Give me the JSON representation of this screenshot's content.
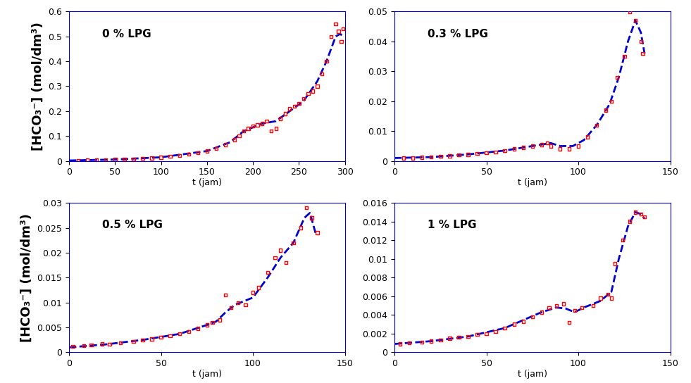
{
  "chart_data": [
    {
      "type": "line",
      "annotations": [
        "0 % LPG"
      ],
      "x_label": "t (jam)",
      "y_label": "[HCO₃⁻] (mol/dm³)",
      "xlim": [
        0,
        300
      ],
      "xticks": [
        0,
        50,
        100,
        150,
        200,
        250,
        300
      ],
      "ylim": [
        0,
        0.6
      ],
      "yticks": [
        0,
        0.1,
        0.2,
        0.3,
        0.4,
        0.5,
        0.6
      ],
      "series": [
        {
          "type": "scatter",
          "color": "#ff0000",
          "marker": "square",
          "x": [
            10,
            20,
            30,
            40,
            50,
            60,
            70,
            80,
            90,
            100,
            110,
            120,
            130,
            140,
            150,
            160,
            170,
            180,
            185,
            190,
            195,
            200,
            205,
            210,
            215,
            220,
            225,
            230,
            235,
            240,
            245,
            250,
            255,
            260,
            265,
            270,
            275,
            280,
            285,
            290,
            293,
            296,
            298
          ],
          "values": [
            0.002,
            0.003,
            0.004,
            0.005,
            0.006,
            0.007,
            0.008,
            0.01,
            0.012,
            0.015,
            0.018,
            0.022,
            0.027,
            0.033,
            0.04,
            0.05,
            0.065,
            0.085,
            0.1,
            0.12,
            0.13,
            0.14,
            0.145,
            0.15,
            0.16,
            0.12,
            0.13,
            0.17,
            0.19,
            0.21,
            0.22,
            0.23,
            0.25,
            0.27,
            0.28,
            0.3,
            0.35,
            0.4,
            0.5,
            0.55,
            0.52,
            0.48,
            0.53
          ]
        },
        {
          "type": "line",
          "color": "#0000cc",
          "line_style": "dashed",
          "x": [
            0,
            50,
            100,
            150,
            175,
            190,
            210,
            225,
            240,
            255,
            270,
            280,
            290,
            295,
            298
          ],
          "values": [
            0.002,
            0.006,
            0.015,
            0.04,
            0.075,
            0.12,
            0.15,
            0.16,
            0.2,
            0.24,
            0.32,
            0.4,
            0.5,
            0.51,
            0.5
          ]
        }
      ]
    },
    {
      "type": "line",
      "annotations": [
        "0.3 % LPG"
      ],
      "x_label": "t (jam)",
      "xlim": [
        0,
        150
      ],
      "xticks": [
        0,
        50,
        100,
        150
      ],
      "ylim": [
        0,
        0.05
      ],
      "yticks": [
        0,
        0.01,
        0.02,
        0.03,
        0.04,
        0.05
      ],
      "series": [
        {
          "type": "scatter",
          "color": "#ff0000",
          "marker": "square",
          "x": [
            5,
            10,
            15,
            20,
            25,
            30,
            35,
            40,
            45,
            50,
            55,
            60,
            65,
            70,
            75,
            80,
            83,
            85,
            90,
            95,
            100,
            105,
            110,
            115,
            118,
            121,
            125,
            128,
            131,
            134,
            135
          ],
          "values": [
            0.001,
            0.001,
            0.0012,
            0.0013,
            0.0015,
            0.0017,
            0.002,
            0.0022,
            0.0025,
            0.0028,
            0.003,
            0.0035,
            0.004,
            0.0045,
            0.005,
            0.0055,
            0.006,
            0.005,
            0.004,
            0.004,
            0.005,
            0.008,
            0.012,
            0.017,
            0.02,
            0.028,
            0.035,
            0.05,
            0.047,
            0.04,
            0.036
          ]
        },
        {
          "type": "line",
          "color": "#0000cc",
          "line_style": "dashed",
          "x": [
            0,
            20,
            40,
            60,
            80,
            85,
            90,
            97,
            103,
            110,
            117,
            122,
            127,
            131,
            134,
            136
          ],
          "values": [
            0.001,
            0.0013,
            0.0022,
            0.0035,
            0.0055,
            0.006,
            0.005,
            0.005,
            0.007,
            0.012,
            0.019,
            0.028,
            0.04,
            0.047,
            0.043,
            0.036
          ]
        }
      ]
    },
    {
      "type": "line",
      "annotations": [
        "0.5 % LPG"
      ],
      "x_label": "t (jam)",
      "y_label": "[HCO₃⁻] (mol/dm³)",
      "xlim": [
        0,
        150
      ],
      "xticks": [
        0,
        50,
        100,
        150
      ],
      "ylim": [
        0,
        0.03
      ],
      "yticks": [
        0,
        0.005,
        0.01,
        0.015,
        0.02,
        0.025,
        0.03
      ],
      "series": [
        {
          "type": "scatter",
          "color": "#ff0000",
          "marker": "square",
          "x": [
            2,
            8,
            12,
            18,
            22,
            28,
            35,
            40,
            45,
            50,
            55,
            60,
            65,
            70,
            75,
            78,
            82,
            85,
            88,
            92,
            96,
            100,
            103,
            108,
            112,
            115,
            118,
            122,
            126,
            129,
            132,
            135
          ],
          "values": [
            0.0012,
            0.0013,
            0.0015,
            0.0017,
            0.0016,
            0.0019,
            0.0022,
            0.0025,
            0.0027,
            0.003,
            0.0033,
            0.0037,
            0.0042,
            0.0048,
            0.0055,
            0.006,
            0.0065,
            0.0115,
            0.009,
            0.01,
            0.0095,
            0.012,
            0.013,
            0.016,
            0.019,
            0.0205,
            0.018,
            0.022,
            0.025,
            0.029,
            0.027,
            0.024
          ]
        },
        {
          "type": "line",
          "color": "#0000cc",
          "line_style": "dashed",
          "x": [
            0,
            20,
            40,
            60,
            75,
            80,
            85,
            90,
            100,
            108,
            115,
            122,
            128,
            131,
            134
          ],
          "values": [
            0.001,
            0.0016,
            0.0025,
            0.0037,
            0.0055,
            0.0062,
            0.008,
            0.0095,
            0.011,
            0.015,
            0.019,
            0.022,
            0.027,
            0.028,
            0.024
          ]
        }
      ]
    },
    {
      "type": "line",
      "annotations": [
        "1 % LPG"
      ],
      "x_label": "t (jam)",
      "xlim": [
        0,
        150
      ],
      "xticks": [
        0,
        50,
        100,
        150
      ],
      "ylim": [
        0,
        0.016
      ],
      "yticks": [
        0,
        0.002,
        0.004,
        0.006,
        0.008,
        0.01,
        0.012,
        0.014,
        0.016
      ],
      "series": [
        {
          "type": "scatter",
          "color": "#ff0000",
          "marker": "square",
          "x": [
            3,
            8,
            15,
            20,
            25,
            30,
            35,
            40,
            45,
            50,
            55,
            60,
            65,
            70,
            75,
            80,
            84,
            88,
            92,
            95,
            98,
            102,
            108,
            112,
            116,
            118,
            120,
            124,
            128,
            131,
            134,
            136
          ],
          "values": [
            0.0009,
            0.001,
            0.0011,
            0.0012,
            0.0013,
            0.0015,
            0.0016,
            0.0017,
            0.0019,
            0.002,
            0.0022,
            0.0026,
            0.003,
            0.0033,
            0.0038,
            0.0043,
            0.0048,
            0.005,
            0.0052,
            0.0032,
            0.0045,
            0.0048,
            0.005,
            0.0058,
            0.0062,
            0.0058,
            0.0095,
            0.012,
            0.014,
            0.015,
            0.0148,
            0.0145
          ]
        },
        {
          "type": "line",
          "color": "#0000cc",
          "line_style": "dashed",
          "x": [
            0,
            20,
            40,
            60,
            80,
            88,
            93,
            98,
            103,
            112,
            118,
            122,
            127,
            131,
            134,
            136
          ],
          "values": [
            0.0009,
            0.0012,
            0.0017,
            0.0026,
            0.0043,
            0.0048,
            0.0047,
            0.0043,
            0.0048,
            0.0055,
            0.0065,
            0.01,
            0.0135,
            0.015,
            0.0148,
            0.0143
          ]
        }
      ]
    }
  ]
}
